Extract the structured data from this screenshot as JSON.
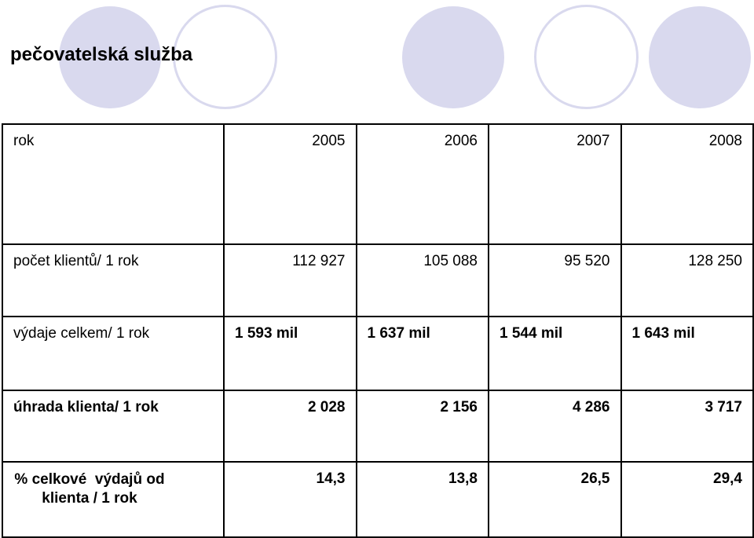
{
  "title": "pečovatelská služba",
  "table": {
    "rows": [
      {
        "label": "rok",
        "values": [
          "2005",
          "2006",
          "2007",
          "2008"
        ]
      },
      {
        "label": "počet klientů/ 1 rok",
        "values": [
          "112 927",
          "105 088",
          "95 520",
          "128 250"
        ]
      },
      {
        "label": "výdaje celkem/ 1 rok",
        "values": [
          "1 593 mil",
          "1 637 mil",
          "1 544 mil",
          "1 643 mil"
        ]
      },
      {
        "label": "úhrada klienta/ 1 rok",
        "values": [
          "2 028",
          "2 156",
          "4 286",
          "3 717"
        ]
      },
      {
        "label_line1": "% celkové  výdajů od",
        "label_line2": "klienta / 1 rok",
        "values": [
          "14,3",
          "13,8",
          "26,5",
          "29,4"
        ]
      }
    ]
  },
  "colors": {
    "circle": "#d9d9ee",
    "border": "#000000"
  }
}
